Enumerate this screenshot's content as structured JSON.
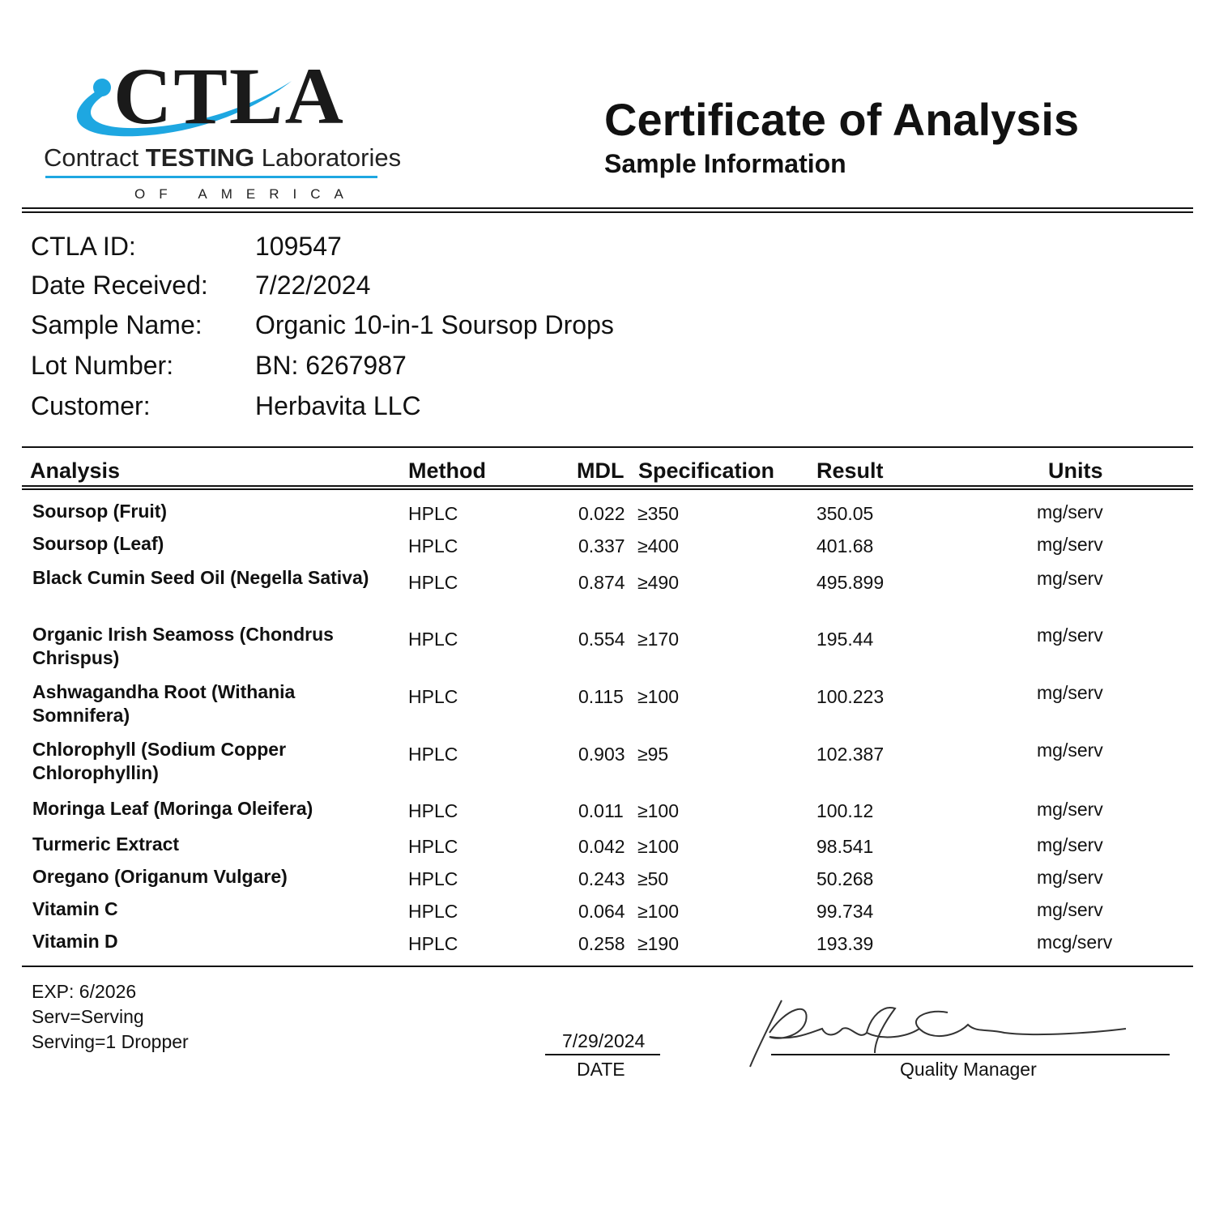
{
  "logo": {
    "letters": "CTLA",
    "line1_pre": "Contract ",
    "line1_bold": "TESTING",
    "line1_post": " Laboratories",
    "line2": "OF AMERICA",
    "color": "#1ea7e1"
  },
  "header": {
    "title": "Certificate of Analysis",
    "subtitle": "Sample Information"
  },
  "info": [
    {
      "label": "CTLA ID:",
      "value": "109547"
    },
    {
      "label": "Date Received:",
      "value": "7/22/2024"
    },
    {
      "label": "Sample Name:",
      "value": "Organic 10-in-1 Soursop Drops"
    },
    {
      "label": "Lot Number:",
      "value": "BN: 6267987"
    },
    {
      "label": "Customer:",
      "value": "Herbavita LLC"
    }
  ],
  "table": {
    "headers": {
      "analysis": "Analysis",
      "method": "Method",
      "mdl": "MDL",
      "spec": "Specification",
      "result": "Result",
      "units": "Units"
    },
    "rows": [
      {
        "analysis": "Soursop (Fruit)",
        "method": "HPLC",
        "mdl": "0.022",
        "spec": "≥350",
        "result": "350.05",
        "units": "mg/serv"
      },
      {
        "analysis": "Soursop (Leaf)",
        "method": "HPLC",
        "mdl": "0.337",
        "spec": "≥400",
        "result": "401.68",
        "units": "mg/serv"
      },
      {
        "analysis": "Black Cumin Seed Oil (Negella Sativa)",
        "method": "HPLC",
        "mdl": "0.874",
        "spec": "≥490",
        "result": "495.899",
        "units": "mg/serv"
      },
      {
        "analysis": "Organic Irish Seamoss (Chondrus Chrispus)",
        "method": "HPLC",
        "mdl": "0.554",
        "spec": "≥170",
        "result": "195.44",
        "units": "mg/serv"
      },
      {
        "analysis": "Ashwagandha Root (Withania Somnifera)",
        "method": "HPLC",
        "mdl": "0.115",
        "spec": "≥100",
        "result": "100.223",
        "units": "mg/serv"
      },
      {
        "analysis": "Chlorophyll (Sodium Copper Chlorophyllin)",
        "method": "HPLC",
        "mdl": "0.903",
        "spec": "≥95",
        "result": "102.387",
        "units": "mg/serv"
      },
      {
        "analysis": "Moringa Leaf (Moringa Oleifera)",
        "method": "HPLC",
        "mdl": "0.011",
        "spec": "≥100",
        "result": "100.12",
        "units": "mg/serv"
      },
      {
        "analysis": "Turmeric Extract",
        "method": "HPLC",
        "mdl": "0.042",
        "spec": "≥100",
        "result": "98.541",
        "units": "mg/serv"
      },
      {
        "analysis": "Oregano (Origanum Vulgare)",
        "method": "HPLC",
        "mdl": "0.243",
        "spec": "≥50",
        "result": "50.268",
        "units": "mg/serv"
      },
      {
        "analysis": "Vitamin C",
        "method": "HPLC",
        "mdl": "0.064",
        "spec": "≥100",
        "result": "99.734",
        "units": "mg/serv"
      },
      {
        "analysis": "Vitamin D",
        "method": "HPLC",
        "mdl": "0.258",
        "spec": "≥190",
        "result": "193.39",
        "units": "mcg/serv"
      }
    ]
  },
  "notes": [
    "EXP: 6/2026",
    "Serv=Serving",
    "Serving=1 Dropper"
  ],
  "footer": {
    "date_value": "7/29/2024",
    "date_label": "DATE",
    "signature_label": "Quality Manager"
  }
}
